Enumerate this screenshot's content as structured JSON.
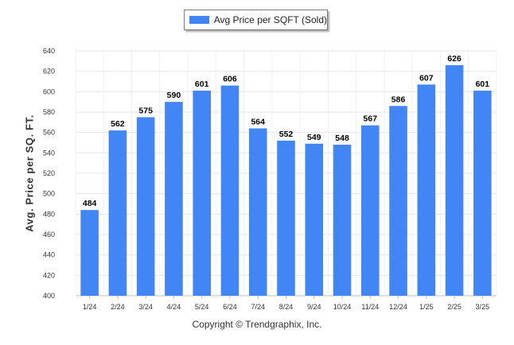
{
  "chart_data": {
    "type": "bar",
    "categories": [
      "1/24",
      "2/24",
      "3/24",
      "4/24",
      "5/24",
      "6/24",
      "7/24",
      "8/24",
      "9/24",
      "10/24",
      "11/24",
      "12/24",
      "1/25",
      "2/25",
      "3/25"
    ],
    "series": [
      {
        "name": "Avg Price per SQFT (Sold)",
        "values": [
          484,
          562,
          575,
          590,
          601,
          606,
          564,
          552,
          549,
          548,
          567,
          586,
          607,
          626,
          601
        ]
      }
    ],
    "ylabel": "Avg. Price per SQ. FT.",
    "xlabel": "",
    "ylim": [
      400,
      640
    ],
    "yticks": [
      400,
      420,
      440,
      460,
      480,
      500,
      520,
      540,
      560,
      580,
      600,
      620,
      640
    ],
    "grid": true,
    "legend_position": "top-center",
    "data_labels": true,
    "bar_color": "#4285f4"
  },
  "footer": {
    "copyright": "Copyright © Trendgraphix, Inc."
  }
}
